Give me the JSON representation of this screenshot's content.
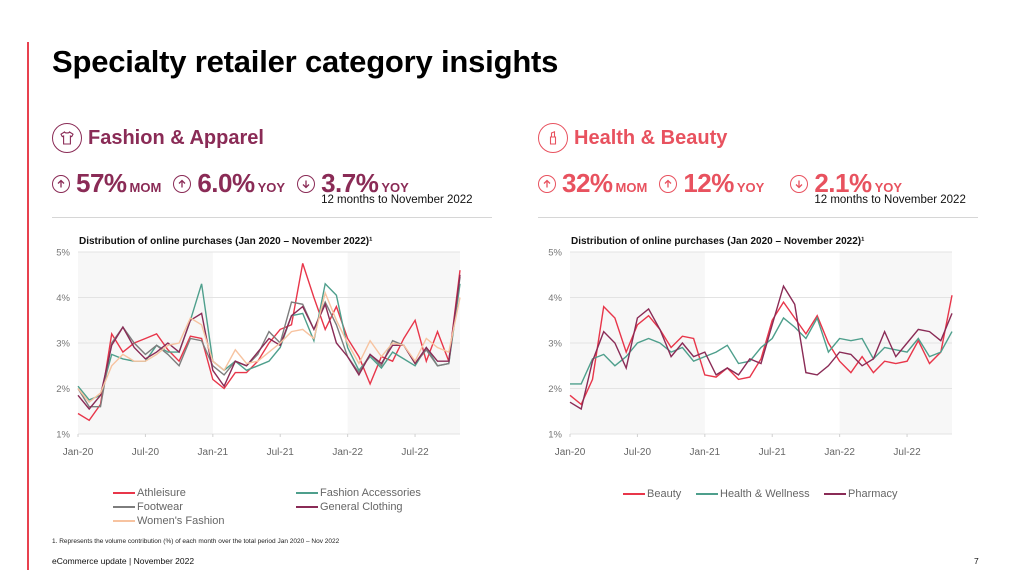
{
  "page": {
    "title": "Specialty retailer category insights",
    "footnote": "1. Represents the volume contribution (%) of each month over the total period Jan 2020 – Nov 2022",
    "footer": "eCommerce update | November 2022",
    "page_number": "7",
    "accent_color": "#e8414f"
  },
  "panels": [
    {
      "title": "Fashion & Apparel",
      "icon": "tshirt-icon",
      "color": "#8a2b56",
      "metrics": [
        {
          "direction": "up",
          "value": "57%",
          "unit": "MOM",
          "sub": ""
        },
        {
          "direction": "up",
          "value": "6.0%",
          "unit": "YOY",
          "sub": ""
        },
        {
          "direction": "down",
          "value": "3.7%",
          "unit": "YOY",
          "sub": "12 months to November 2022"
        }
      ],
      "chart_title": "Distribution of online purchases (Jan 2020 – November 2022)¹"
    },
    {
      "title": "Health & Beauty",
      "icon": "lipstick-icon",
      "color": "#e8525f",
      "metrics": [
        {
          "direction": "up",
          "value": "32%",
          "unit": "MOM",
          "sub": ""
        },
        {
          "direction": "up",
          "value": "12%",
          "unit": "YOY",
          "sub": ""
        },
        {
          "direction": "down",
          "value": "2.1%",
          "unit": "YOY",
          "sub": "12 months to November 2022"
        }
      ],
      "chart_title": "Distribution of online purchases (Jan 2020 – November 2022)¹"
    }
  ],
  "chart_data": [
    {
      "type": "line",
      "title": "Distribution of online purchases (Jan 2020 – November 2022)¹",
      "xlabel": "",
      "ylabel": "",
      "ylim": [
        1,
        5
      ],
      "yticks": [
        "1%",
        "2%",
        "3%",
        "4%",
        "5%"
      ],
      "xticks": [
        {
          "label": "Jan-20",
          "index": 0
        },
        {
          "label": "Jul-20",
          "index": 6
        },
        {
          "label": "Jan-21",
          "index": 12
        },
        {
          "label": "Jul-21",
          "index": 18
        },
        {
          "label": "Jan-22",
          "index": 24
        },
        {
          "label": "Jul-22",
          "index": 30
        }
      ],
      "x_range": "Jan-20 to Nov-22 (monthly, 35 points)",
      "shaded_years": [
        "2020",
        "2022"
      ],
      "grid": true,
      "legend": "bottom",
      "series": [
        {
          "name": "Athleisure",
          "color": "#e8364a",
          "values": [
            1.45,
            1.3,
            1.65,
            3.2,
            2.8,
            3.0,
            3.1,
            3.2,
            2.85,
            2.6,
            3.15,
            3.1,
            2.2,
            2.0,
            2.35,
            2.35,
            2.6,
            3.0,
            3.3,
            3.4,
            4.75,
            4.0,
            3.3,
            3.8,
            3.1,
            2.7,
            2.1,
            2.7,
            2.6,
            3.1,
            3.5,
            2.6,
            3.25,
            2.6,
            4.6
          ]
        },
        {
          "name": "Fashion Accessories",
          "color": "#4e9f8c",
          "values": [
            2.05,
            1.75,
            1.85,
            2.75,
            2.65,
            2.6,
            2.6,
            2.95,
            2.8,
            2.8,
            3.5,
            4.3,
            2.6,
            2.4,
            2.6,
            2.4,
            2.5,
            2.6,
            2.9,
            3.6,
            3.65,
            3.05,
            4.3,
            4.05,
            2.9,
            2.4,
            2.7,
            2.45,
            2.8,
            2.65,
            2.5,
            2.9,
            2.5,
            2.55,
            4.3
          ]
        },
        {
          "name": "Footwear",
          "color": "#7d7d7d",
          "values": [
            2.0,
            1.6,
            1.6,
            3.0,
            3.35,
            3.0,
            2.75,
            2.95,
            2.75,
            2.5,
            3.1,
            3.05,
            2.5,
            2.3,
            2.6,
            2.5,
            2.75,
            3.25,
            3.0,
            3.9,
            3.85,
            3.3,
            3.9,
            3.4,
            2.7,
            2.35,
            2.75,
            2.5,
            3.05,
            2.95,
            2.55,
            2.85,
            2.5,
            2.55,
            4.45
          ]
        },
        {
          "name": "General Clothing",
          "color": "#8a2b56",
          "values": [
            1.85,
            1.55,
            1.85,
            2.95,
            3.35,
            2.9,
            2.65,
            2.8,
            3.0,
            2.8,
            3.5,
            3.65,
            2.4,
            2.05,
            2.6,
            2.5,
            2.8,
            3.1,
            2.95,
            3.6,
            3.8,
            3.3,
            3.85,
            3.0,
            2.7,
            2.3,
            2.75,
            2.55,
            2.95,
            2.95,
            2.55,
            2.9,
            2.6,
            2.6,
            4.5
          ]
        },
        {
          "name": "Women's Fashion",
          "color": "#f7c3a0",
          "values": [
            2.0,
            1.7,
            1.9,
            2.5,
            2.75,
            2.6,
            2.6,
            2.75,
            2.95,
            3.0,
            3.55,
            3.4,
            2.6,
            2.4,
            2.85,
            2.55,
            2.6,
            2.8,
            3.0,
            3.25,
            3.3,
            3.1,
            4.1,
            3.5,
            3.0,
            2.55,
            3.05,
            2.7,
            3.0,
            2.95,
            2.6,
            3.1,
            2.9,
            2.8,
            4.0
          ]
        }
      ]
    },
    {
      "type": "line",
      "title": "Distribution of online purchases (Jan 2020 – November 2022)¹",
      "xlabel": "",
      "ylabel": "",
      "ylim": [
        1,
        5
      ],
      "yticks": [
        "1%",
        "2%",
        "3%",
        "4%",
        "5%"
      ],
      "xticks": [
        {
          "label": "Jan-20",
          "index": 0
        },
        {
          "label": "Jul-20",
          "index": 6
        },
        {
          "label": "Jan-21",
          "index": 12
        },
        {
          "label": "Jul-21",
          "index": 18
        },
        {
          "label": "Jan-22",
          "index": 24
        },
        {
          "label": "Jul-22",
          "index": 30
        }
      ],
      "x_range": "Jan-20 to Nov-22 (monthly, 35 points)",
      "shaded_years": [
        "2020",
        "2022"
      ],
      "grid": true,
      "legend": "bottom",
      "series": [
        {
          "name": "Beauty",
          "color": "#e8364a",
          "values": [
            1.85,
            1.65,
            2.2,
            3.8,
            3.55,
            2.8,
            3.4,
            3.6,
            3.3,
            2.9,
            3.15,
            3.1,
            2.3,
            2.25,
            2.45,
            2.2,
            2.25,
            2.65,
            3.5,
            3.9,
            3.55,
            3.2,
            3.6,
            3.0,
            2.6,
            2.35,
            2.7,
            2.35,
            2.6,
            2.55,
            2.6,
            3.05,
            2.55,
            2.8,
            4.05
          ]
        },
        {
          "name": "Health & Wellness",
          "color": "#4e9f8c",
          "values": [
            2.1,
            2.1,
            2.65,
            2.75,
            2.5,
            2.7,
            3.0,
            3.1,
            3.0,
            2.8,
            2.9,
            2.6,
            2.7,
            2.8,
            2.95,
            2.55,
            2.6,
            2.9,
            3.1,
            3.55,
            3.35,
            3.1,
            3.55,
            2.8,
            3.1,
            3.05,
            3.1,
            2.65,
            2.9,
            2.85,
            2.8,
            3.1,
            2.7,
            2.8,
            3.25
          ]
        },
        {
          "name": "Pharmacy",
          "color": "#8a2b56",
          "values": [
            1.7,
            1.55,
            2.6,
            3.25,
            3.0,
            2.45,
            3.55,
            3.75,
            3.3,
            2.7,
            3.0,
            2.7,
            2.8,
            2.3,
            2.45,
            2.3,
            2.65,
            2.55,
            3.4,
            4.25,
            3.85,
            2.35,
            2.3,
            2.5,
            2.8,
            2.75,
            2.5,
            2.65,
            3.25,
            2.7,
            3.0,
            3.3,
            3.25,
            3.05,
            3.65
          ]
        }
      ]
    }
  ]
}
